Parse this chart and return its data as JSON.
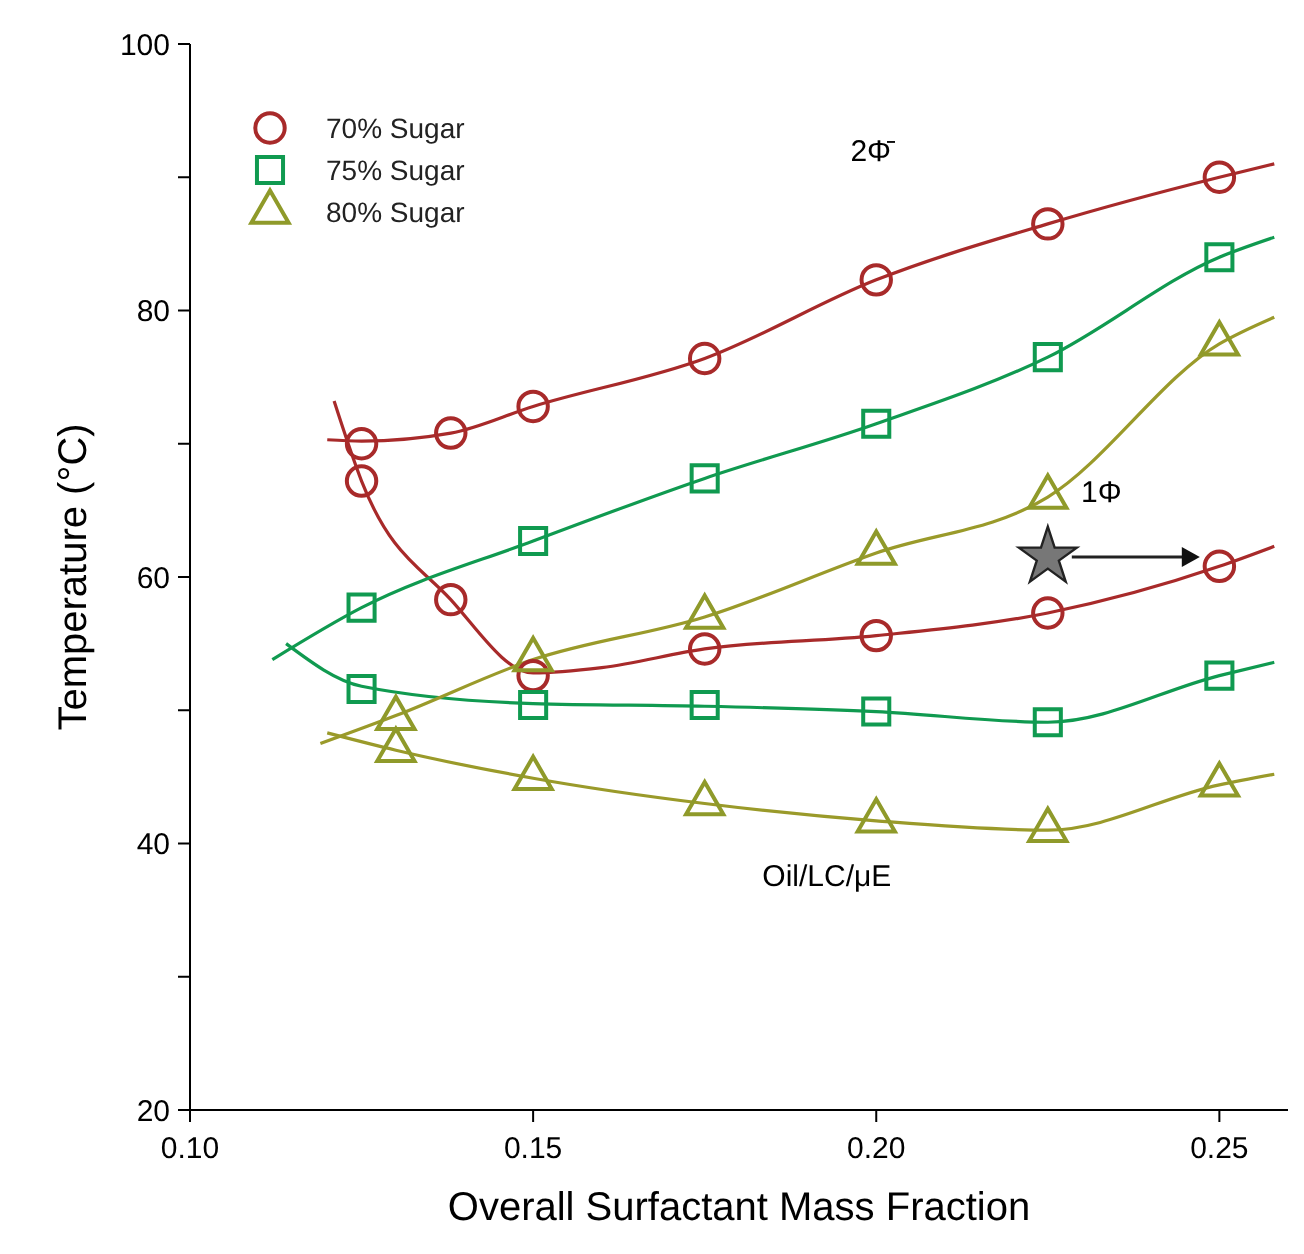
{
  "chart_data": {
    "type": "scatter",
    "xlabel": "Overall Surfactant Mass Fraction",
    "ylabel": "Temperature (°C)",
    "xlim": [
      0.1,
      0.26
    ],
    "xticks": [
      {
        "value": 0.1,
        "label": "0.10"
      },
      {
        "value": 0.15,
        "label": "0.15"
      },
      {
        "value": 0.2,
        "label": "0.20"
      },
      {
        "value": 0.25,
        "label": "0.25"
      }
    ],
    "ylim": [
      20,
      100
    ],
    "yticks": [
      20,
      {
        "value": 30,
        "label": null
      },
      40,
      {
        "value": 50,
        "label": null
      },
      60,
      {
        "value": 70,
        "label": null
      },
      80,
      {
        "value": 90,
        "label": null
      },
      100
    ],
    "legend": "top left",
    "grid": false,
    "annotations": [
      "2Φ̄",
      "1Φ",
      "Oil/LC/μE"
    ],
    "series": [
      {
        "type": "line",
        "color": "#a82a2a",
        "x": [
          0.12,
          0.125,
          0.138,
          0.15,
          0.175,
          0.2,
          0.225,
          0.25,
          0.258
        ],
        "values": [
          70.3,
          70.2,
          70.8,
          72.8,
          76.4,
          82.3,
          86.5,
          90,
          91
        ]
      },
      {
        "type": "line",
        "color": "#a82a2a",
        "x": [
          0.121,
          0.125,
          0.138,
          0.15,
          0.16,
          0.175,
          0.2,
          0.225,
          0.25,
          0.258
        ],
        "values": [
          73.2,
          67.2,
          58.3,
          52.8,
          53.2,
          54.6,
          55.6,
          57.3,
          60.8,
          62.3
        ]
      },
      {
        "type": "line",
        "color": "#109a50",
        "x": [
          0.112,
          0.125,
          0.15,
          0.175,
          0.2,
          0.225,
          0.25,
          0.258
        ],
        "values": [
          53.8,
          57.7,
          62.7,
          67.4,
          71.5,
          76.5,
          84,
          85.5
        ]
      },
      {
        "type": "line",
        "color": "#109a50",
        "x": [
          0.114,
          0.125,
          0.15,
          0.175,
          0.2,
          0.225,
          0.25,
          0.258
        ],
        "values": [
          55,
          51.8,
          50.5,
          50.3,
          49.9,
          49.1,
          52.6,
          53.6
        ]
      },
      {
        "type": "line",
        "color": "#9a9a2a",
        "x": [
          0.119,
          0.13,
          0.15,
          0.175,
          0.2,
          0.225,
          0.25,
          0.258
        ],
        "values": [
          47.5,
          49.6,
          53.8,
          57,
          61.8,
          66,
          77.5,
          79.5
        ]
      },
      {
        "type": "line",
        "color": "#9a9a2a",
        "x": [
          0.12,
          0.13,
          0.15,
          0.175,
          0.2,
          0.225,
          0.25,
          0.258
        ],
        "values": [
          48.3,
          47,
          44.9,
          43,
          41.7,
          41,
          44.4,
          45.2
        ]
      },
      {
        "name": "70% Sugar",
        "marker": "circle",
        "color": "#a82a2a",
        "x": [
          0.125,
          0.138,
          0.15,
          0.175,
          0.2,
          0.225,
          0.25,
          0.125,
          0.138,
          0.15,
          0.175,
          0.2,
          0.225,
          0.25
        ],
        "values": [
          70,
          70.8,
          72.8,
          76.4,
          82.3,
          86.5,
          90,
          67.2,
          58.3,
          52.6,
          54.6,
          55.6,
          57.3,
          60.8
        ]
      },
      {
        "name": "75% Sugar",
        "marker": "square",
        "color": "#109a50",
        "x": [
          0.125,
          0.15,
          0.175,
          0.2,
          0.225,
          0.25,
          0.125,
          0.15,
          0.175,
          0.2,
          0.225,
          0.25
        ],
        "values": [
          57.7,
          62.7,
          67.4,
          71.5,
          76.5,
          84,
          51.6,
          50.4,
          50.4,
          49.9,
          49.1,
          52.6
        ]
      },
      {
        "name": "80% Sugar",
        "marker": "triangle",
        "color": "#8f9a2a",
        "x": [
          0.13,
          0.15,
          0.175,
          0.2,
          0.225,
          0.25,
          0.13,
          0.15,
          0.175,
          0.2,
          0.225,
          0.25
        ],
        "values": [
          49.4,
          53.8,
          57,
          61.8,
          66,
          77.5,
          47,
          44.9,
          43,
          41.7,
          41,
          44.4
        ]
      },
      {
        "marker": "star",
        "color": "#777777",
        "x": [
          0.225
        ],
        "values": [
          61.5
        ]
      }
    ]
  }
}
